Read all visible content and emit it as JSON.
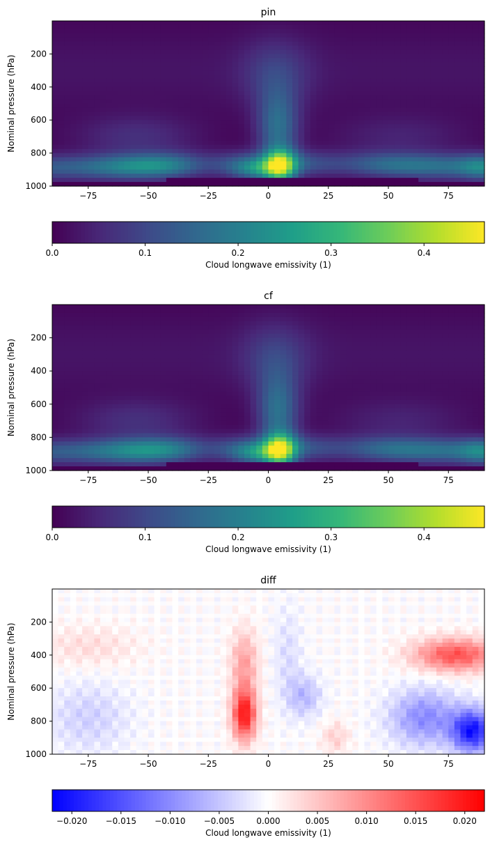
{
  "chart_data": [
    {
      "type": "heatmap",
      "title": "pin",
      "xlabel": "",
      "ylabel": "Nominal pressure (hPa)",
      "xlim": [
        -90,
        90
      ],
      "ylim": [
        1000,
        0
      ],
      "xticks": [
        "−75",
        "−50",
        "−25",
        "0",
        "25",
        "50",
        "75"
      ],
      "xtick_values": [
        -75,
        -50,
        -25,
        0,
        25,
        50,
        75
      ],
      "yticks": [
        "200",
        "400",
        "600",
        "800",
        "1000"
      ],
      "ytick_values": [
        200,
        400,
        600,
        800,
        1000
      ],
      "colormap": "viridis",
      "colorbar": {
        "label": "Cloud longwave emissivity (1)",
        "range": [
          0.0,
          0.465
        ],
        "ticks": [
          "0.0",
          "0.1",
          "0.2",
          "0.3",
          "0.4"
        ],
        "tick_values": [
          0.0,
          0.1,
          0.2,
          0.3,
          0.4
        ],
        "orientation": "horizontal"
      },
      "features": [
        {
          "lat": 5,
          "pressure": 900,
          "value": 0.46,
          "description": "tropical low-cloud maximum"
        },
        {
          "lat": -5,
          "pressure": 900,
          "value": 0.36
        },
        {
          "lat": -50,
          "pressure": 850,
          "value": 0.3
        },
        {
          "lat": 5,
          "pressure": 650,
          "value": 0.3
        },
        {
          "lat": 5,
          "pressure": 300,
          "value": 0.12
        },
        {
          "lat": 60,
          "pressure": 800,
          "value": 0.2
        },
        {
          "lat": 88,
          "pressure": 930,
          "value": 0.28
        }
      ]
    },
    {
      "type": "heatmap",
      "title": "cf",
      "xlabel": "",
      "ylabel": "Nominal pressure (hPa)",
      "xlim": [
        -90,
        90
      ],
      "ylim": [
        1000,
        0
      ],
      "xticks": [
        "−75",
        "−50",
        "−25",
        "0",
        "25",
        "50",
        "75"
      ],
      "xtick_values": [
        -75,
        -50,
        -25,
        0,
        25,
        50,
        75
      ],
      "yticks": [
        "200",
        "400",
        "600",
        "800",
        "1000"
      ],
      "ytick_values": [
        200,
        400,
        600,
        800,
        1000
      ],
      "colormap": "viridis",
      "colorbar": {
        "label": "Cloud longwave emissivity (1)",
        "range": [
          0.0,
          0.465
        ],
        "ticks": [
          "0.0",
          "0.1",
          "0.2",
          "0.3",
          "0.4"
        ],
        "tick_values": [
          0.0,
          0.1,
          0.2,
          0.3,
          0.4
        ],
        "orientation": "horizontal"
      },
      "features": [
        {
          "lat": 5,
          "pressure": 900,
          "value": 0.46
        },
        {
          "lat": -5,
          "pressure": 900,
          "value": 0.37
        },
        {
          "lat": -50,
          "pressure": 850,
          "value": 0.3
        },
        {
          "lat": 5,
          "pressure": 650,
          "value": 0.31
        },
        {
          "lat": 5,
          "pressure": 300,
          "value": 0.12
        },
        {
          "lat": 60,
          "pressure": 800,
          "value": 0.19
        },
        {
          "lat": 88,
          "pressure": 930,
          "value": 0.3
        }
      ]
    },
    {
      "type": "heatmap",
      "title": "diff",
      "xlabel": "",
      "ylabel": "Nominal pressure (hPa)",
      "xlim": [
        -90,
        90
      ],
      "ylim": [
        1000,
        0
      ],
      "xticks": [
        "−75",
        "−50",
        "−25",
        "0",
        "25",
        "50",
        "75"
      ],
      "xtick_values": [
        -75,
        -50,
        -25,
        0,
        25,
        50,
        75
      ],
      "yticks": [
        "200",
        "400",
        "600",
        "800",
        "1000"
      ],
      "ytick_values": [
        200,
        400,
        600,
        800,
        1000
      ],
      "colormap": "bwr",
      "colorbar": {
        "label": "Cloud longwave emissivity (1)",
        "range": [
          -0.022,
          0.022
        ],
        "ticks": [
          "−0.020",
          "−0.015",
          "−0.010",
          "−0.005",
          "0.000",
          "0.005",
          "0.010",
          "0.015",
          "0.020"
        ],
        "tick_values": [
          -0.02,
          -0.015,
          -0.01,
          -0.005,
          0.0,
          0.005,
          0.01,
          0.015,
          0.02
        ],
        "orientation": "horizontal"
      },
      "features": [
        {
          "lat": -10,
          "pressure": 750,
          "value": 0.02
        },
        {
          "lat": -10,
          "pressure": 450,
          "value": 0.008
        },
        {
          "lat": 75,
          "pressure": 400,
          "value": 0.016
        },
        {
          "lat": 85,
          "pressure": 870,
          "value": -0.022
        },
        {
          "lat": 65,
          "pressure": 800,
          "value": -0.012
        },
        {
          "lat": 15,
          "pressure": 650,
          "value": -0.006
        },
        {
          "lat": -75,
          "pressure": 350,
          "value": 0.003
        }
      ]
    }
  ]
}
